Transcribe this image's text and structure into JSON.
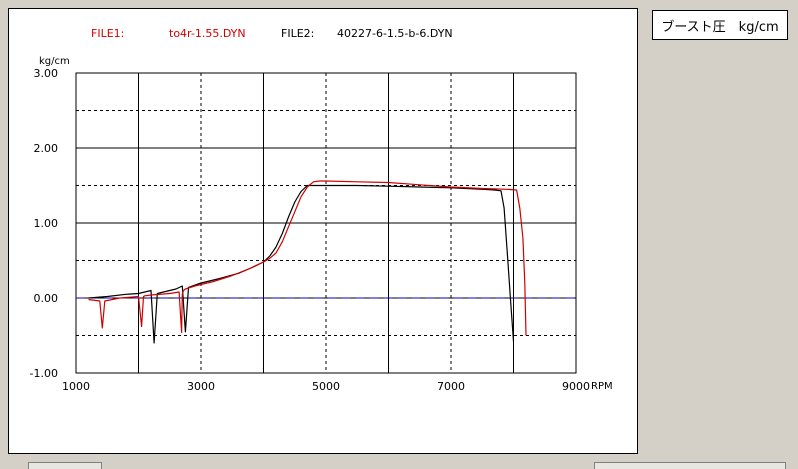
{
  "header": {
    "file1_label": "FILE1:",
    "file1_name": "to4r-1.55.DYN",
    "file2_label": "FILE2:",
    "file2_name": "40227-6-1.5-b-6.DYN"
  },
  "unit_box_text": "ブースト圧　kg/cm",
  "colors": {
    "series1": "#d00000",
    "series2": "#000000",
    "zero_line": "#0000cc",
    "grid": "#000000"
  },
  "chart_data": {
    "type": "line",
    "ylabel": "kg/cm",
    "xlabel": "RPM",
    "xlim": [
      1000,
      9000
    ],
    "ylim": [
      -1.0,
      3.0
    ],
    "x_ticks": [
      1000,
      3000,
      5000,
      7000,
      9000
    ],
    "x_tick_labels": [
      "1000",
      "3000",
      "5000",
      "7000",
      "9000"
    ],
    "y_ticks": [
      -1.0,
      0.0,
      1.0,
      2.0,
      3.0
    ],
    "y_tick_labels": [
      "-1.00",
      "0.00",
      "1.00",
      "2.00",
      "3.00"
    ],
    "grid": true,
    "reference_line": {
      "y": 0.0,
      "style": "dashed"
    },
    "series": [
      {
        "name": "to4r-1.55.DYN",
        "x": [
          1200,
          1380,
          1420,
          1460,
          1700,
          2000,
          2050,
          2080,
          2100,
          2200,
          2500,
          2650,
          2690,
          2700,
          2720,
          2750,
          2900,
          3200,
          3500,
          3800,
          4000,
          4100,
          4200,
          4300,
          4400,
          4500,
          4600,
          4700,
          4800,
          4900,
          5000,
          5500,
          6000,
          6500,
          7000,
          7500,
          7900,
          8050,
          8100,
          8150,
          8180,
          8200
        ],
        "y": [
          -0.02,
          -0.04,
          -0.4,
          -0.04,
          0.0,
          0.02,
          -0.38,
          0.02,
          0.03,
          0.04,
          0.06,
          0.08,
          -0.46,
          0.05,
          0.1,
          0.12,
          0.16,
          0.22,
          0.3,
          0.4,
          0.48,
          0.53,
          0.6,
          0.75,
          0.95,
          1.15,
          1.35,
          1.48,
          1.55,
          1.56,
          1.56,
          1.55,
          1.54,
          1.51,
          1.48,
          1.46,
          1.45,
          1.44,
          1.2,
          0.8,
          0.2,
          -0.5
        ]
      },
      {
        "name": "40227-6-1.5-b-6.DYN",
        "x": [
          1200,
          1500,
          1800,
          2000,
          2200,
          2250,
          2300,
          2400,
          2600,
          2700,
          2750,
          2800,
          3000,
          3300,
          3600,
          3800,
          4000,
          4100,
          4200,
          4300,
          4400,
          4500,
          4600,
          4700,
          5000,
          5500,
          6000,
          6500,
          7000,
          7500,
          7700,
          7800,
          7850,
          7900,
          7950,
          8000
        ],
        "y": [
          0.0,
          0.02,
          0.05,
          0.06,
          0.1,
          -0.6,
          0.06,
          0.08,
          0.12,
          0.16,
          -0.45,
          0.14,
          0.2,
          0.26,
          0.33,
          0.4,
          0.48,
          0.56,
          0.68,
          0.86,
          1.08,
          1.28,
          1.42,
          1.5,
          1.5,
          1.5,
          1.49,
          1.48,
          1.47,
          1.45,
          1.44,
          1.43,
          1.2,
          0.6,
          0.0,
          -0.58
        ]
      }
    ]
  }
}
